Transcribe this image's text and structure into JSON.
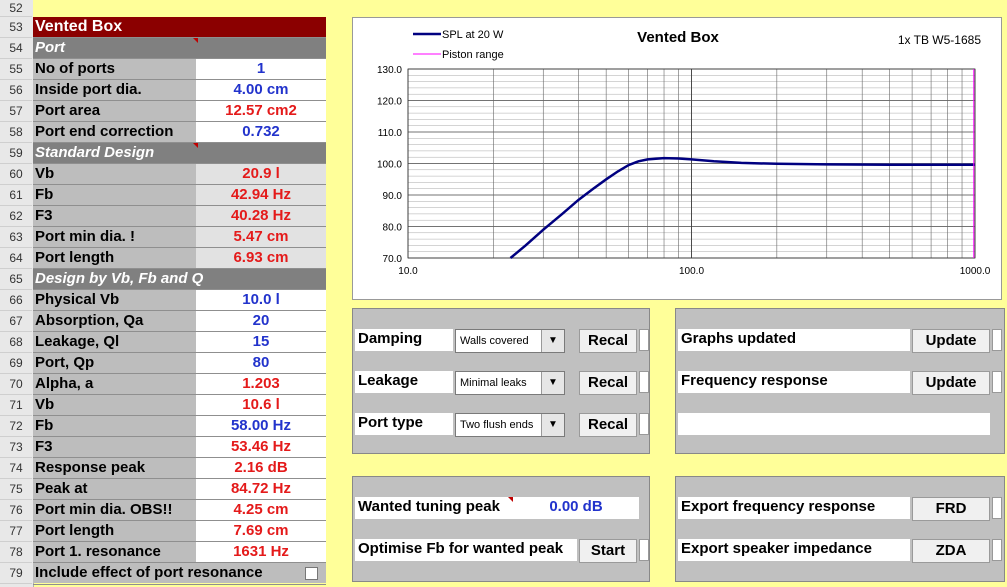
{
  "row_numbers": [
    "52",
    "53",
    "54",
    "55",
    "56",
    "57",
    "58",
    "59",
    "60",
    "61",
    "62",
    "63",
    "64",
    "65",
    "66",
    "67",
    "68",
    "69",
    "70",
    "71",
    "72",
    "73",
    "74",
    "75",
    "76",
    "77",
    "78",
    "79"
  ],
  "panel": {
    "title": "Vented Box",
    "section_port": "Port",
    "section_standard": "Standard Design",
    "section_vbfbq": "Design by Vb, Fb and Q",
    "rows": [
      {
        "label": "No of ports",
        "value": "1"
      },
      {
        "label": "Inside port dia.",
        "value": "4.00  cm"
      },
      {
        "label": "Port area",
        "value": "12.57  cm2"
      },
      {
        "label": "Port end correction",
        "value": "0.732"
      },
      {
        "label": "Vb",
        "value": "20.9  l"
      },
      {
        "label": "Fb",
        "value": "42.94  Hz"
      },
      {
        "label": "F3",
        "value": "40.28  Hz"
      },
      {
        "label": "Port min dia. !",
        "value": "5.47  cm"
      },
      {
        "label": "Port length",
        "value": "6.93  cm"
      },
      {
        "label": "Physical Vb",
        "value": "10.0  l"
      },
      {
        "label": "Absorption, Qa",
        "value": "20"
      },
      {
        "label": "Leakage, Ql",
        "value": "15"
      },
      {
        "label": "Port, Qp",
        "value": "80"
      },
      {
        "label": "Alpha, a",
        "value": "1.203"
      },
      {
        "label": "Vb",
        "value": "10.6  l"
      },
      {
        "label": "Fb",
        "value": "58.00  Hz"
      },
      {
        "label": "F3",
        "value": "53.46  Hz"
      },
      {
        "label": "Response peak",
        "value": "2.16  dB"
      },
      {
        "label": "Peak at",
        "value": "84.72  Hz"
      },
      {
        "label": "Port min dia. OBS!!",
        "value": "4.25  cm"
      },
      {
        "label": "Port length",
        "value": "7.69  cm"
      },
      {
        "label": "Port 1. resonance",
        "value": "1631  Hz"
      }
    ],
    "include_label": "Include effect of port resonance"
  },
  "chart_data": {
    "type": "line",
    "title": "Vented Box",
    "subtitle": "1x TB W5-1685",
    "xscale": "log",
    "xlim": [
      10,
      1000
    ],
    "ylim": [
      70,
      130
    ],
    "xticks": [
      "10.0",
      "100.0",
      "1000.0"
    ],
    "yticks": [
      "130.0",
      "120.0",
      "110.0",
      "100.0",
      "90.0",
      "80.0",
      "70.0"
    ],
    "grid": true,
    "legend": "top-left",
    "series": [
      {
        "name": "SPL at 20 W",
        "color": "#000080",
        "x": [
          23,
          26,
          30,
          35,
          40,
          45,
          50,
          55,
          60,
          65,
          70,
          80,
          90,
          100,
          120,
          150,
          200,
          300,
          500,
          1000
        ],
        "y": [
          70.0,
          74.0,
          79.0,
          84.0,
          88.5,
          92.0,
          95.0,
          97.5,
          99.5,
          100.7,
          101.3,
          101.7,
          101.6,
          101.3,
          100.7,
          100.2,
          99.9,
          99.7,
          99.6,
          99.6
        ]
      },
      {
        "name": "Piston range",
        "color": "#ff00ff",
        "x": [
          990,
          990
        ],
        "y": [
          70,
          130
        ]
      }
    ]
  },
  "controls": {
    "damping_label": "Damping",
    "damping_value": "Walls covered",
    "leakage_label": "Leakage",
    "leakage_value": "Minimal leaks",
    "porttype_label": "Port type",
    "porttype_value": "Two flush ends",
    "recal_label": "Recal",
    "wanted_label": "Wanted tuning peak",
    "wanted_value": "0.00  dB",
    "optimise_label": "Optimise Fb for wanted peak",
    "start_label": "Start",
    "graphs_label": "Graphs updated",
    "freqresp_label": "Frequency response",
    "update_label": "Update",
    "export_frd_label": "Export frequency response",
    "frd_label": "FRD",
    "export_zda_label": "Export speaker impedance",
    "zda_label": "ZDA"
  },
  "colors": {
    "title_bg": "#8b0000",
    "section_bg": "#808080",
    "red_value": "#e41a1a",
    "blue_value": "#2233cc",
    "sheet_bg": "#ffff99"
  }
}
